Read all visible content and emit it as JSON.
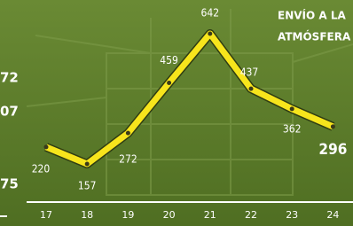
{
  "chart_data": {
    "type": "line",
    "title_lines": [
      "ENVÍO A LA",
      "ATMÓSFERA"
    ],
    "categories": [
      "17",
      "18",
      "19",
      "20",
      "21",
      "22",
      "23",
      "24"
    ],
    "values": [
      220,
      157,
      272,
      459,
      642,
      437,
      362,
      296
    ],
    "color": "#f7e51c"
  },
  "side_labels": [
    "72",
    "07",
    "75"
  ]
}
